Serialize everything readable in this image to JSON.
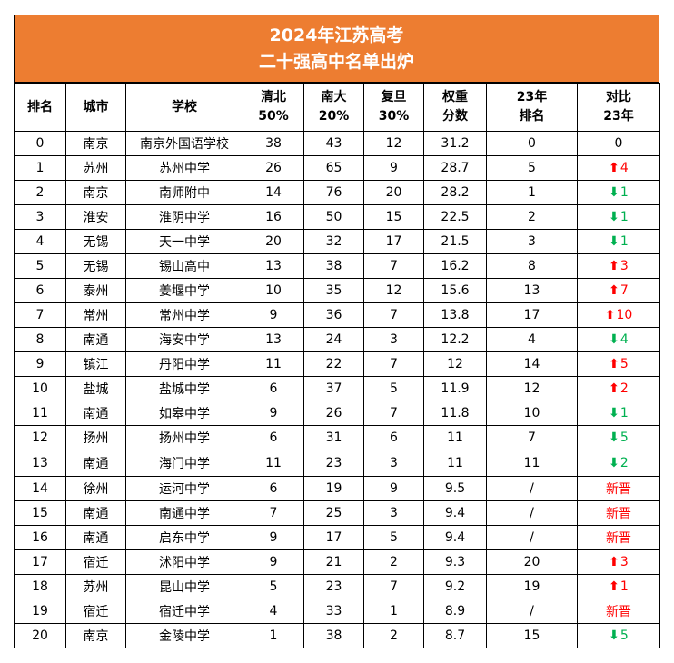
{
  "title": {
    "line1": "2024年江苏高考",
    "line2": "二十强高中名单出炉"
  },
  "headers": [
    {
      "l1": "排名",
      "l2": ""
    },
    {
      "l1": "城市",
      "l2": ""
    },
    {
      "l1": "学校",
      "l2": ""
    },
    {
      "l1": "清北",
      "l2": "50%"
    },
    {
      "l1": "南大",
      "l2": "20%"
    },
    {
      "l1": "复旦",
      "l2": "30%"
    },
    {
      "l1": "权重",
      "l2": "分数"
    },
    {
      "l1": "23年",
      "l2": "排名"
    },
    {
      "l1": "对比",
      "l2": "23年"
    }
  ],
  "rows": [
    {
      "rank": "0",
      "city": "南京",
      "school": "南京外国语学校",
      "qingbei": "38",
      "nanda": "43",
      "fudan": "12",
      "score": "31.2",
      "rank23": "0",
      "change": {
        "dir": "none",
        "text": "0"
      }
    },
    {
      "rank": "1",
      "city": "苏州",
      "school": "苏州中学",
      "qingbei": "26",
      "nanda": "65",
      "fudan": "9",
      "score": "28.7",
      "rank23": "5",
      "change": {
        "dir": "up",
        "text": "4"
      }
    },
    {
      "rank": "2",
      "city": "南京",
      "school": "南师附中",
      "qingbei": "14",
      "nanda": "76",
      "fudan": "20",
      "score": "28.2",
      "rank23": "1",
      "change": {
        "dir": "down",
        "text": "1"
      }
    },
    {
      "rank": "3",
      "city": "淮安",
      "school": "淮阴中学",
      "qingbei": "16",
      "nanda": "50",
      "fudan": "15",
      "score": "22.5",
      "rank23": "2",
      "change": {
        "dir": "down",
        "text": "1"
      }
    },
    {
      "rank": "4",
      "city": "无锡",
      "school": "天一中学",
      "qingbei": "20",
      "nanda": "32",
      "fudan": "17",
      "score": "21.5",
      "rank23": "3",
      "change": {
        "dir": "down",
        "text": "1"
      }
    },
    {
      "rank": "5",
      "city": "无锡",
      "school": "锡山高中",
      "qingbei": "13",
      "nanda": "38",
      "fudan": "7",
      "score": "16.2",
      "rank23": "8",
      "change": {
        "dir": "up",
        "text": "3"
      }
    },
    {
      "rank": "6",
      "city": "泰州",
      "school": "姜堰中学",
      "qingbei": "10",
      "nanda": "35",
      "fudan": "12",
      "score": "15.6",
      "rank23": "13",
      "change": {
        "dir": "up",
        "text": "7"
      }
    },
    {
      "rank": "7",
      "city": "常州",
      "school": "常州中学",
      "qingbei": "9",
      "nanda": "36",
      "fudan": "7",
      "score": "13.8",
      "rank23": "17",
      "change": {
        "dir": "up",
        "text": "10"
      }
    },
    {
      "rank": "8",
      "city": "南通",
      "school": "海安中学",
      "qingbei": "13",
      "nanda": "24",
      "fudan": "3",
      "score": "12.2",
      "rank23": "4",
      "change": {
        "dir": "down",
        "text": "4"
      }
    },
    {
      "rank": "9",
      "city": "镇江",
      "school": "丹阳中学",
      "qingbei": "11",
      "nanda": "22",
      "fudan": "7",
      "score": "12",
      "rank23": "14",
      "change": {
        "dir": "up",
        "text": "5"
      }
    },
    {
      "rank": "10",
      "city": "盐城",
      "school": "盐城中学",
      "qingbei": "6",
      "nanda": "37",
      "fudan": "5",
      "score": "11.9",
      "rank23": "12",
      "change": {
        "dir": "up",
        "text": "2"
      }
    },
    {
      "rank": "11",
      "city": "南通",
      "school": "如皋中学",
      "qingbei": "9",
      "nanda": "26",
      "fudan": "7",
      "score": "11.8",
      "rank23": "10",
      "change": {
        "dir": "down",
        "text": "1"
      }
    },
    {
      "rank": "12",
      "city": "扬州",
      "school": "扬州中学",
      "qingbei": "6",
      "nanda": "31",
      "fudan": "6",
      "score": "11",
      "rank23": "7",
      "change": {
        "dir": "down",
        "text": "5"
      }
    },
    {
      "rank": "13",
      "city": "南通",
      "school": "海门中学",
      "qingbei": "11",
      "nanda": "23",
      "fudan": "3",
      "score": "11",
      "rank23": "11",
      "change": {
        "dir": "down",
        "text": "2"
      }
    },
    {
      "rank": "14",
      "city": "徐州",
      "school": "运河中学",
      "qingbei": "6",
      "nanda": "19",
      "fudan": "9",
      "score": "9.5",
      "rank23": "/",
      "change": {
        "dir": "new",
        "text": "新晋"
      }
    },
    {
      "rank": "15",
      "city": "南通",
      "school": "南通中学",
      "qingbei": "7",
      "nanda": "25",
      "fudan": "3",
      "score": "9.4",
      "rank23": "/",
      "change": {
        "dir": "new",
        "text": "新晋"
      }
    },
    {
      "rank": "16",
      "city": "南通",
      "school": "启东中学",
      "qingbei": "9",
      "nanda": "17",
      "fudan": "5",
      "score": "9.4",
      "rank23": "/",
      "change": {
        "dir": "new",
        "text": "新晋"
      }
    },
    {
      "rank": "17",
      "city": "宿迁",
      "school": "沭阳中学",
      "qingbei": "9",
      "nanda": "21",
      "fudan": "2",
      "score": "9.3",
      "rank23": "20",
      "change": {
        "dir": "up",
        "text": "3"
      }
    },
    {
      "rank": "18",
      "city": "苏州",
      "school": "昆山中学",
      "qingbei": "5",
      "nanda": "23",
      "fudan": "7",
      "score": "9.2",
      "rank23": "19",
      "change": {
        "dir": "up",
        "text": "1"
      }
    },
    {
      "rank": "19",
      "city": "宿迁",
      "school": "宿迁中学",
      "qingbei": "4",
      "nanda": "33",
      "fudan": "1",
      "score": "8.9",
      "rank23": "/",
      "change": {
        "dir": "new",
        "text": "新晋"
      }
    },
    {
      "rank": "20",
      "city": "南京",
      "school": "金陵中学",
      "qingbei": "1",
      "nanda": "38",
      "fudan": "2",
      "score": "8.7",
      "rank23": "15",
      "change": {
        "dir": "down",
        "text": "5"
      }
    }
  ],
  "colors": {
    "title_bg": "#ED7D31",
    "up": "#FF0000",
    "down": "#00B050",
    "new": "#FF0000"
  },
  "icons": {
    "up": "arrow-up-icon",
    "down": "arrow-down-icon"
  }
}
